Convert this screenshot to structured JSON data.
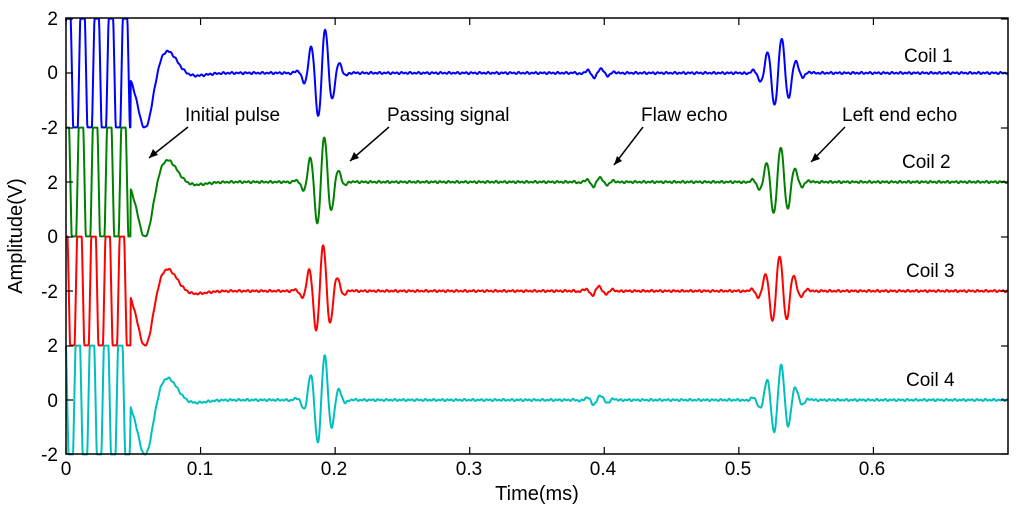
{
  "chart_data": {
    "type": "line",
    "title": "",
    "xlabel": "Time(ms)",
    "ylabel": "Amplitude(V)",
    "xlim": [
      0,
      0.7
    ],
    "x_ticks": [
      0,
      0.1,
      0.2,
      0.3,
      0.4,
      0.5,
      0.6
    ],
    "x_tick_labels": [
      "0",
      "0.1",
      "0.2",
      "0.3",
      "0.4",
      "0.5",
      "0.6"
    ],
    "y_tick_labels": [
      "2",
      "0",
      "-2",
      "2",
      "0",
      "-2",
      "0",
      "-2",
      "2",
      "0",
      "-2"
    ],
    "clip_level_v": 2,
    "series": [
      {
        "name": "Coil 1",
        "color": "#0000ff",
        "baseline_v": 0
      },
      {
        "name": "Coil 2",
        "color": "#008000",
        "baseline_v": 2
      },
      {
        "name": "Coil 3",
        "color": "#ff0000",
        "baseline_v": -2
      },
      {
        "name": "Coil 4",
        "color": "#00bfbf",
        "baseline_v": 0
      }
    ],
    "events": [
      {
        "name": "Initial pulse",
        "t_ms": 0.06,
        "amplitude_v": 2.5
      },
      {
        "name": "Passing signal",
        "t_ms": 0.19,
        "amplitude_v": 1.7
      },
      {
        "name": "Flaw echo",
        "t_ms": 0.395,
        "amplitude_v": 0.18
      },
      {
        "name": "Left end echo",
        "t_ms": 0.53,
        "amplitude_v": 1.3
      }
    ],
    "annotations": [
      {
        "text": "Initial pulse",
        "points_to": {
          "series": "Coil 2",
          "t_ms": 0.06
        }
      },
      {
        "text": "Passing signal",
        "points_to": {
          "series": "Coil 2",
          "t_ms": 0.21
        }
      },
      {
        "text": "Flaw echo",
        "points_to": {
          "series": "Coil 2",
          "t_ms": 0.405
        }
      },
      {
        "text": "Left end echo",
        "points_to": {
          "series": "Coil 2",
          "t_ms": 0.555
        }
      }
    ]
  }
}
